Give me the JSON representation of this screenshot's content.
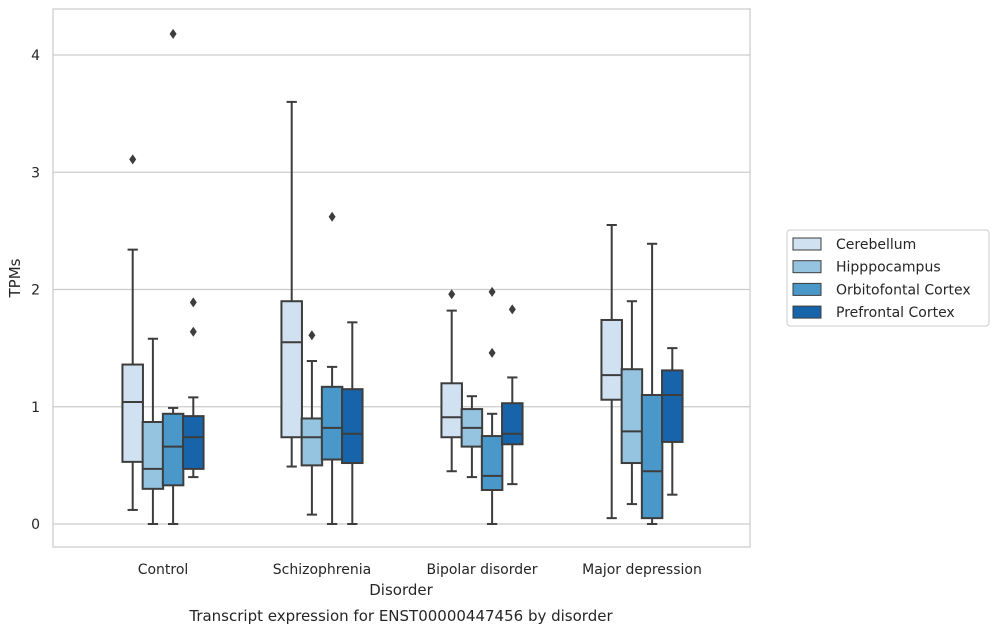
{
  "chart_data": {
    "type": "box",
    "title": "Transcript expression for ENST00000447456 by disorder",
    "xlabel": "Disorder",
    "ylabel": "TPMs",
    "ylim": [
      -0.2,
      4.4
    ],
    "yticks": [
      0,
      1,
      2,
      3,
      4
    ],
    "grid": "horizontal",
    "legend_position": "right",
    "categories": [
      "Control",
      "Schizophrenia",
      "Bipolar disorder",
      "Major depression"
    ],
    "series": [
      {
        "name": "Cerebellum",
        "color": "#d0e1f2",
        "boxes": [
          {
            "whisker_low": 0.12,
            "q1": 0.53,
            "median": 1.04,
            "q3": 1.36,
            "whisker_high": 2.34,
            "outliers": [
              3.11
            ]
          },
          {
            "whisker_low": 0.49,
            "q1": 0.74,
            "median": 1.55,
            "q3": 1.9,
            "whisker_high": 3.6,
            "outliers": []
          },
          {
            "whisker_low": 0.45,
            "q1": 0.74,
            "median": 0.91,
            "q3": 1.2,
            "whisker_high": 1.82,
            "outliers": [
              1.96
            ]
          },
          {
            "whisker_low": 0.05,
            "q1": 1.06,
            "median": 1.27,
            "q3": 1.74,
            "whisker_high": 2.55,
            "outliers": []
          }
        ]
      },
      {
        "name": "Hipppocampus",
        "color": "#94c4df",
        "boxes": [
          {
            "whisker_low": 0.0,
            "q1": 0.3,
            "median": 0.47,
            "q3": 0.87,
            "whisker_high": 1.58,
            "outliers": []
          },
          {
            "whisker_low": 0.08,
            "q1": 0.5,
            "median": 0.74,
            "q3": 0.9,
            "whisker_high": 1.39,
            "outliers": [
              1.61
            ]
          },
          {
            "whisker_low": 0.4,
            "q1": 0.66,
            "median": 0.82,
            "q3": 0.98,
            "whisker_high": 1.09,
            "outliers": []
          },
          {
            "whisker_low": 0.17,
            "q1": 0.52,
            "median": 0.79,
            "q3": 1.32,
            "whisker_high": 1.9,
            "outliers": []
          }
        ]
      },
      {
        "name": "Orbitofontal Cortex",
        "color": "#4a98c9",
        "boxes": [
          {
            "whisker_low": 0.0,
            "q1": 0.33,
            "median": 0.66,
            "q3": 0.94,
            "whisker_high": 0.99,
            "outliers": [
              4.18
            ]
          },
          {
            "whisker_low": 0.0,
            "q1": 0.55,
            "median": 0.82,
            "q3": 1.17,
            "whisker_high": 1.34,
            "outliers": [
              2.62
            ]
          },
          {
            "whisker_low": 0.0,
            "q1": 0.29,
            "median": 0.41,
            "q3": 0.75,
            "whisker_high": 0.94,
            "outliers": [
              1.46,
              1.98
            ]
          },
          {
            "whisker_low": 0.0,
            "q1": 0.05,
            "median": 0.45,
            "q3": 1.1,
            "whisker_high": 2.39,
            "outliers": []
          }
        ]
      },
      {
        "name": "Prefrontal Cortex",
        "color": "#1764ab",
        "boxes": [
          {
            "whisker_low": 0.4,
            "q1": 0.47,
            "median": 0.74,
            "q3": 0.92,
            "whisker_high": 1.08,
            "outliers": [
              1.64,
              1.89
            ]
          },
          {
            "whisker_low": 0.0,
            "q1": 0.52,
            "median": 0.77,
            "q3": 1.15,
            "whisker_high": 1.72,
            "outliers": []
          },
          {
            "whisker_low": 0.34,
            "q1": 0.68,
            "median": 0.77,
            "q3": 1.03,
            "whisker_high": 1.25,
            "outliers": [
              1.83
            ]
          },
          {
            "whisker_low": 0.25,
            "q1": 0.7,
            "median": 1.1,
            "q3": 1.31,
            "whisker_high": 1.5,
            "outliers": []
          }
        ]
      }
    ]
  }
}
